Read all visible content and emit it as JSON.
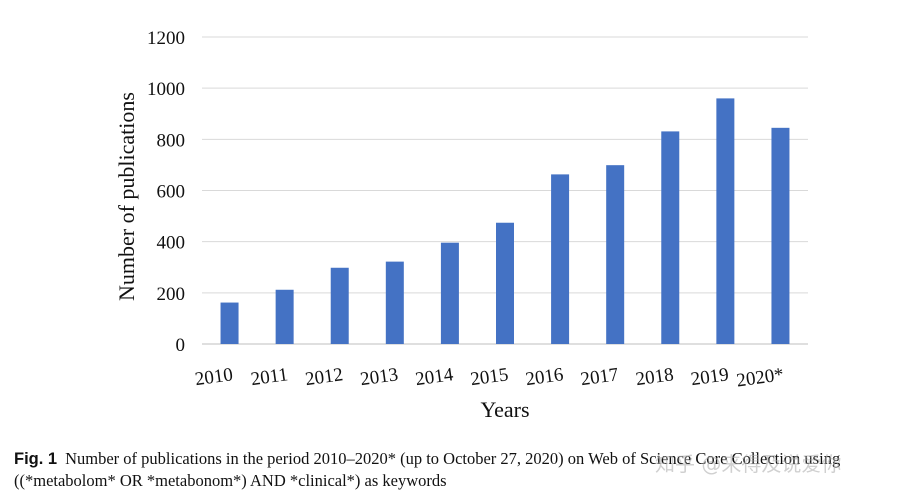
{
  "chart_data": {
    "type": "bar",
    "categories": [
      "2010",
      "2011",
      "2012",
      "2013",
      "2014",
      "2015",
      "2016",
      "2017",
      "2018",
      "2019",
      "2020*"
    ],
    "values": [
      162,
      212,
      298,
      322,
      396,
      474,
      663,
      699,
      831,
      960,
      845
    ],
    "xlabel": "Years",
    "ylabel": "Number of publications",
    "ylim": [
      0,
      1200
    ],
    "yticks": [
      0,
      200,
      400,
      600,
      800,
      1000,
      1200
    ],
    "grid": true,
    "legend": "none",
    "bar_color": "#4472C4"
  },
  "caption": {
    "label": "Fig. 1",
    "text": "Number of publications in the period 2010–2020* (up to October 27, 2020) on Web of Science Core Collection using ((*metabolom* OR *metabonom*) AND *clinical*) as keywords"
  },
  "watermark": "知乎 @来得及说爱你"
}
